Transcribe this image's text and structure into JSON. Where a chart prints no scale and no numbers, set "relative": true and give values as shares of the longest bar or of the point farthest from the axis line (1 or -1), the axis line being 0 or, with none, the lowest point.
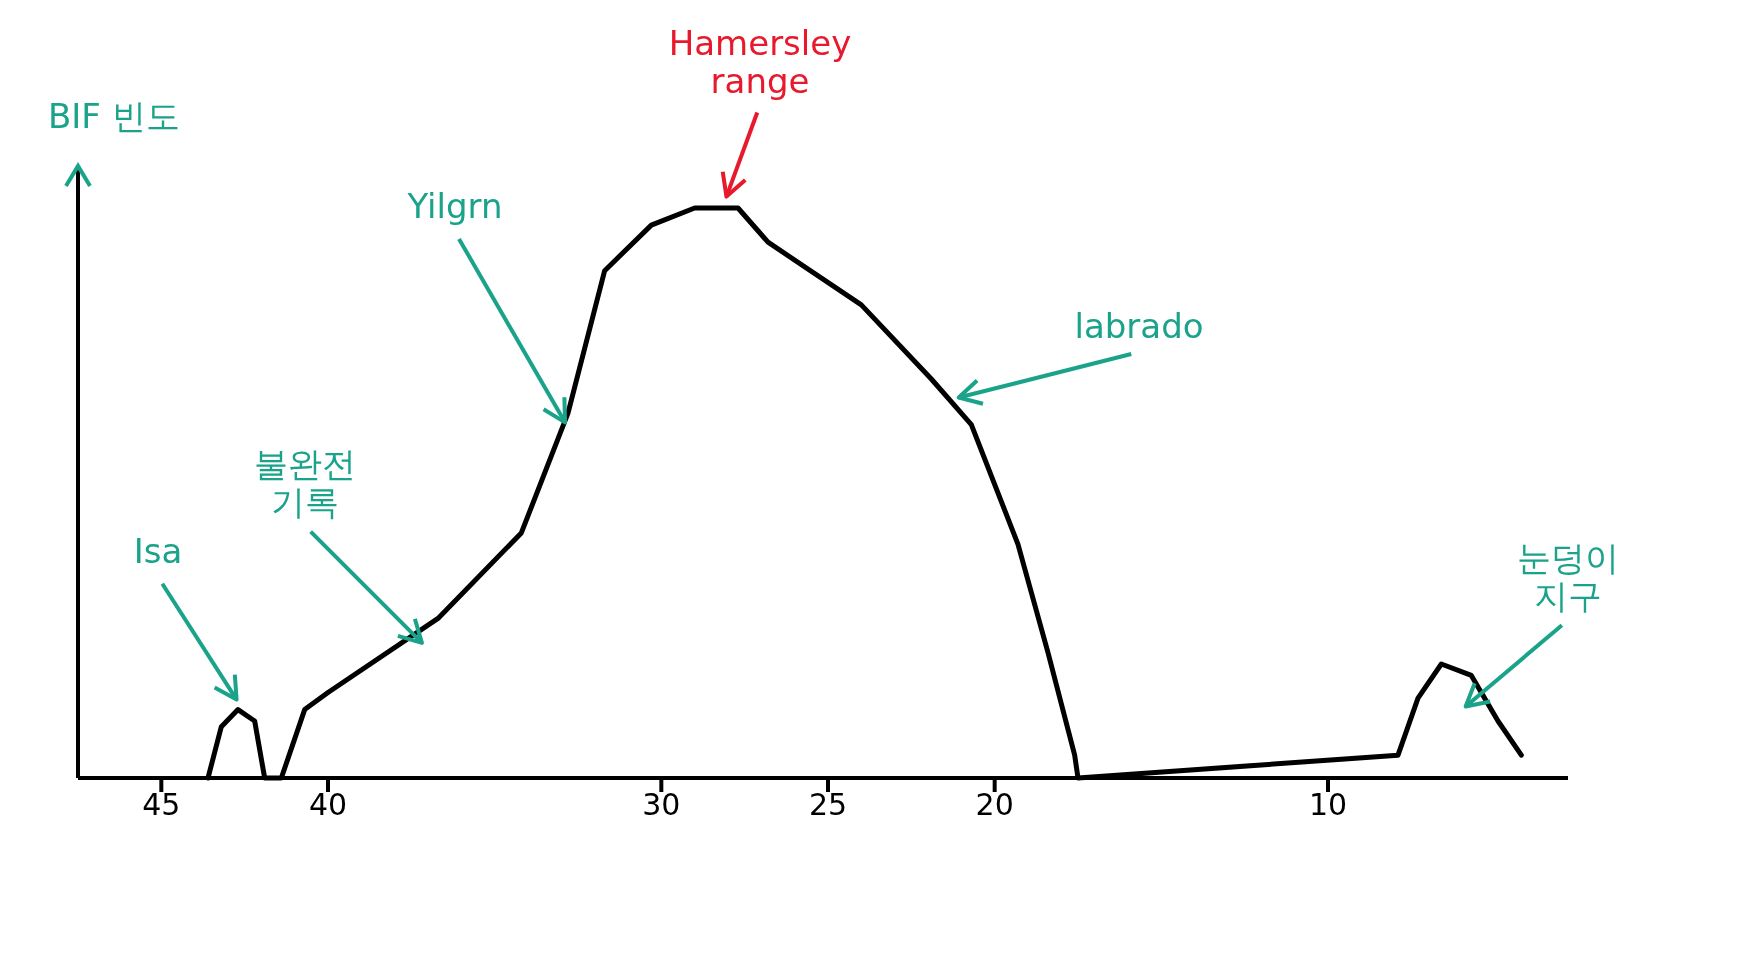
{
  "chart_data": {
    "type": "line",
    "relative": true,
    "ylabel": "BIF 빈도",
    "xlim": [
      47.5,
      2.8
    ],
    "xticks": [
      45,
      40,
      30,
      25,
      20,
      10
    ],
    "grid": false,
    "legend": false,
    "marker": "none",
    "line_style": "solid",
    "series": [
      {
        "color": "#000000",
        "x": [
          43.6,
          43.2,
          42.7,
          42.2,
          41.9,
          41.4,
          40.7,
          40,
          36.7,
          34.2,
          32.8,
          31.7,
          30.3,
          29,
          27.7,
          26.8,
          24,
          21.9,
          20.7,
          19.3,
          18.4,
          17.6,
          17.5,
          7.9,
          7.3,
          6.6,
          5.7,
          4.9,
          4.2
        ],
        "values": [
          0,
          0.09,
          0.12,
          0.1,
          0,
          0,
          0.12,
          0.15,
          0.28,
          0.43,
          0.64,
          0.89,
          0.97,
          1,
          1,
          0.94,
          0.83,
          0.7,
          0.62,
          0.41,
          0.22,
          0.04,
          0,
          0.04,
          0.14,
          0.2,
          0.18,
          0.1,
          0.04
        ]
      }
    ],
    "annotations": [
      "Isa",
      "Hamersley range",
      "Yilgrn",
      "불완전 기록",
      "labrado",
      "눈덩이 지구"
    ]
  }
}
